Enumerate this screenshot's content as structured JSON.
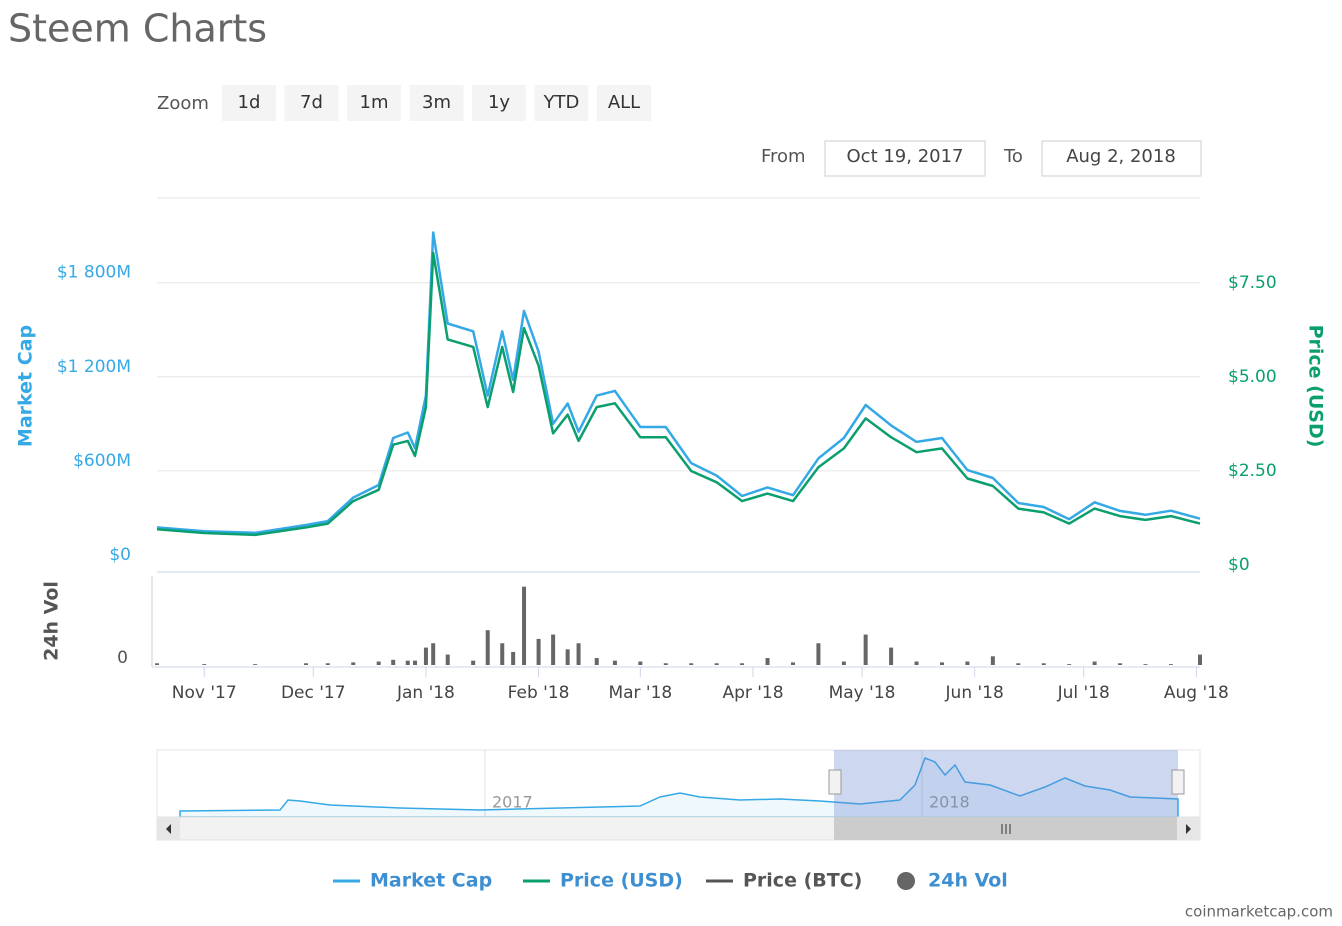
{
  "title": "Steem Charts",
  "zoom": {
    "label": "Zoom",
    "buttons": [
      "1d",
      "7d",
      "1m",
      "3m",
      "1y",
      "YTD",
      "ALL"
    ]
  },
  "range": {
    "from_label": "From",
    "from": "Oct 19, 2017",
    "to_label": "To",
    "to": "Aug 2, 2018"
  },
  "watermark": "coinmarketcap.com",
  "chart_data": {
    "type": "line",
    "x": [
      "2017-10-19",
      "2017-11-01",
      "2017-11-15",
      "2017-11-29",
      "2017-12-05",
      "2017-12-12",
      "2017-12-19",
      "2017-12-23",
      "2017-12-27",
      "2017-12-29",
      "2018-01-01",
      "2018-01-03",
      "2018-01-07",
      "2018-01-14",
      "2018-01-18",
      "2018-01-22",
      "2018-01-25",
      "2018-01-28",
      "2018-02-01",
      "2018-02-05",
      "2018-02-09",
      "2018-02-12",
      "2018-02-17",
      "2018-02-22",
      "2018-03-01",
      "2018-03-08",
      "2018-03-15",
      "2018-03-22",
      "2018-03-29",
      "2018-04-05",
      "2018-04-12",
      "2018-04-19",
      "2018-04-26",
      "2018-05-02",
      "2018-05-09",
      "2018-05-16",
      "2018-05-23",
      "2018-05-30",
      "2018-06-06",
      "2018-06-13",
      "2018-06-20",
      "2018-06-27",
      "2018-07-04",
      "2018-07-11",
      "2018-07-18",
      "2018-07-25",
      "2018-08-02"
    ],
    "xlim": [
      "2017-10-19",
      "2018-08-02"
    ],
    "xticks": [
      {
        "value": "2017-11-01",
        "label": "Nov '17"
      },
      {
        "value": "2017-12-01",
        "label": "Dec '17"
      },
      {
        "value": "2018-01-01",
        "label": "Jan '18"
      },
      {
        "value": "2018-02-01",
        "label": "Feb '18"
      },
      {
        "value": "2018-03-01",
        "label": "Mar '18"
      },
      {
        "value": "2018-04-01",
        "label": "Apr '18"
      },
      {
        "value": "2018-05-01",
        "label": "May '18"
      },
      {
        "value": "2018-06-01",
        "label": "Jun '18"
      },
      {
        "value": "2018-07-01",
        "label": "Jul '18"
      },
      {
        "value": "2018-08-01",
        "label": "Aug '18"
      }
    ],
    "ylabel": "Market Cap",
    "ylim": [
      0,
      2340000000
    ],
    "yticks": [
      {
        "value": 0,
        "label": "$0"
      },
      {
        "value": 600000000,
        "label": "$600M"
      },
      {
        "value": 1200000000,
        "label": "$1 200M"
      },
      {
        "value": 1800000000,
        "label": "$1 800M"
      }
    ],
    "y2label": "Price (USD)",
    "y2lim": [
      0,
      9.76
    ],
    "y2ticks": [
      {
        "value": 0,
        "label": "$0"
      },
      {
        "value": 2.5,
        "label": "$2.50"
      },
      {
        "value": 5,
        "label": "$5.00"
      },
      {
        "value": 7.5,
        "label": "$7.50"
      }
    ],
    "vol_label": "24h Vol",
    "vol_lim": [
      0,
      100000000
    ],
    "vol_ticks": [
      0
    ],
    "grid": true,
    "series": [
      {
        "name": "Market Cap",
        "color": "#35a9e6",
        "values": [
          240000000,
          215000000,
          205000000,
          255000000,
          280000000,
          430000000,
          510000000,
          810000000,
          845000000,
          745000000,
          1080000000,
          2120000000,
          1540000000,
          1490000000,
          1080000000,
          1490000000,
          1180000000,
          1620000000,
          1360000000,
          900000000,
          1030000000,
          850000000,
          1080000000,
          1110000000,
          880000000,
          880000000,
          650000000,
          570000000,
          440000000,
          495000000,
          445000000,
          680000000,
          810000000,
          1020000000,
          890000000,
          785000000,
          810000000,
          605000000,
          555000000,
          395000000,
          370000000,
          292000000,
          400000000,
          345000000,
          320000000,
          346000000,
          295000000
        ]
      },
      {
        "name": "Price (USD)",
        "color": "#0b9f6f",
        "axis": "y2",
        "values": [
          0.95,
          0.85,
          0.8,
          1.0,
          1.1,
          1.7,
          2.0,
          3.2,
          3.3,
          2.9,
          4.2,
          8.3,
          6.0,
          5.8,
          4.2,
          5.8,
          4.6,
          6.3,
          5.3,
          3.5,
          4.0,
          3.3,
          4.2,
          4.3,
          3.4,
          3.4,
          2.5,
          2.2,
          1.7,
          1.9,
          1.7,
          2.6,
          3.1,
          3.9,
          3.4,
          3.0,
          3.1,
          2.3,
          2.1,
          1.5,
          1.4,
          1.1,
          1.5,
          1.3,
          1.2,
          1.3,
          1.1
        ]
      },
      {
        "name": "24h Vol",
        "color": "#666666",
        "axis": "vol",
        "values": [
          2000000,
          1000000,
          1000000,
          2000000,
          2000000,
          3000000,
          4000000,
          6000000,
          5000000,
          5000000,
          20000000,
          25000000,
          12000000,
          5000000,
          40000000,
          25000000,
          15000000,
          90000000,
          30000000,
          35000000,
          18000000,
          25000000,
          8000000,
          5000000,
          4000000,
          2000000,
          2000000,
          2000000,
          2000000,
          8000000,
          3000000,
          25000000,
          4000000,
          35000000,
          20000000,
          4000000,
          3000000,
          4000000,
          10000000,
          2000000,
          2000000,
          1000000,
          4000000,
          2000000,
          1000000,
          1000000,
          12000000
        ]
      }
    ],
    "legend": [
      "Market Cap",
      "Price (USD)",
      "Price (BTC)",
      "24h Vol"
    ],
    "navigator": {
      "labels": [
        "2017",
        "2018"
      ]
    }
  }
}
